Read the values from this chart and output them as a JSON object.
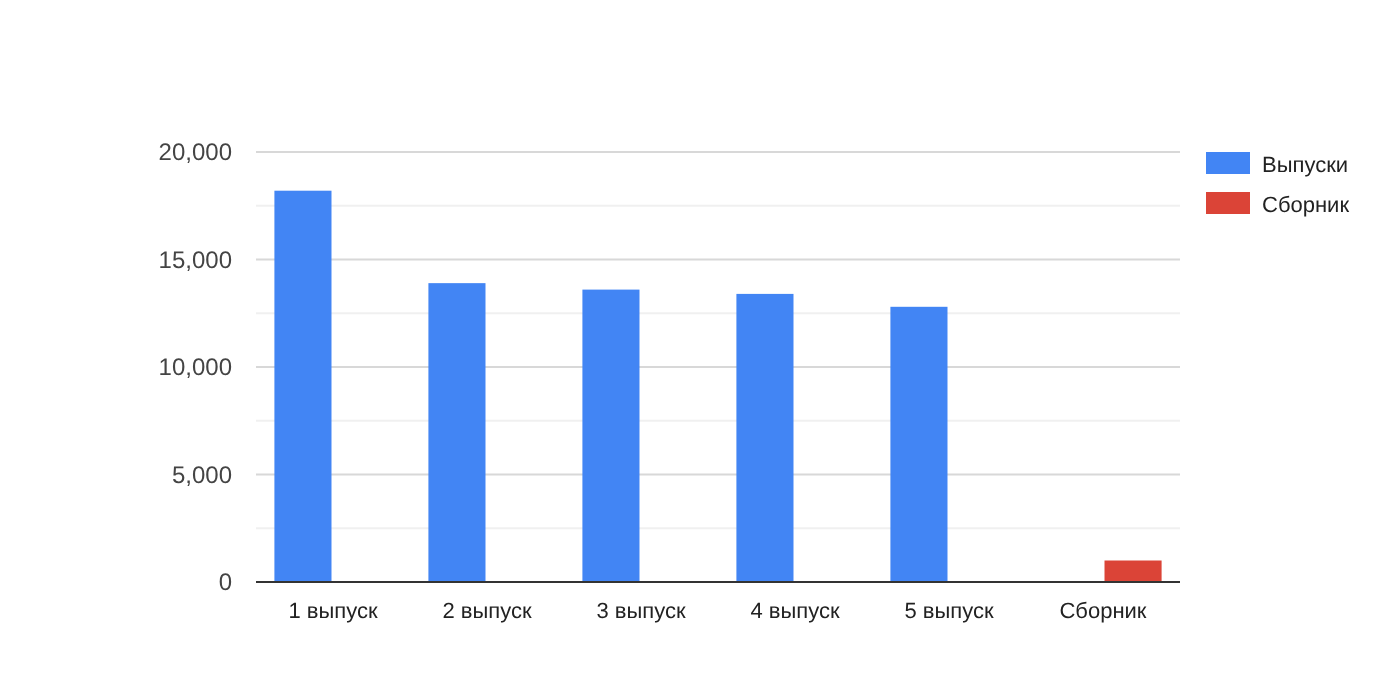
{
  "chart_data": {
    "type": "bar",
    "categories": [
      "1 выпуск",
      "2 выпуск",
      "3 выпуск",
      "4 выпуск",
      "5 выпуск",
      "Сборник"
    ],
    "series": [
      {
        "name": "Выпуски",
        "color": "#4285f4",
        "values": [
          18200,
          13900,
          13600,
          13400,
          12800,
          null
        ]
      },
      {
        "name": "Сборник",
        "color": "#db4437",
        "values": [
          null,
          null,
          null,
          null,
          null,
          1000
        ]
      }
    ],
    "ylim": [
      0,
      20000
    ],
    "yticks": [
      0,
      {
        "value": 2500,
        "label": null
      },
      "5,000",
      {
        "value": 7500,
        "label": null
      },
      {
        "value": 10000,
        "label": "10,000"
      },
      {
        "value": 12500,
        "label": null
      },
      {
        "value": 15000,
        "label": "15,000"
      },
      {
        "value": 17500,
        "label": null
      },
      {
        "value": 20000,
        "label": "20,000"
      }
    ],
    "grid": true,
    "legend": "right"
  }
}
